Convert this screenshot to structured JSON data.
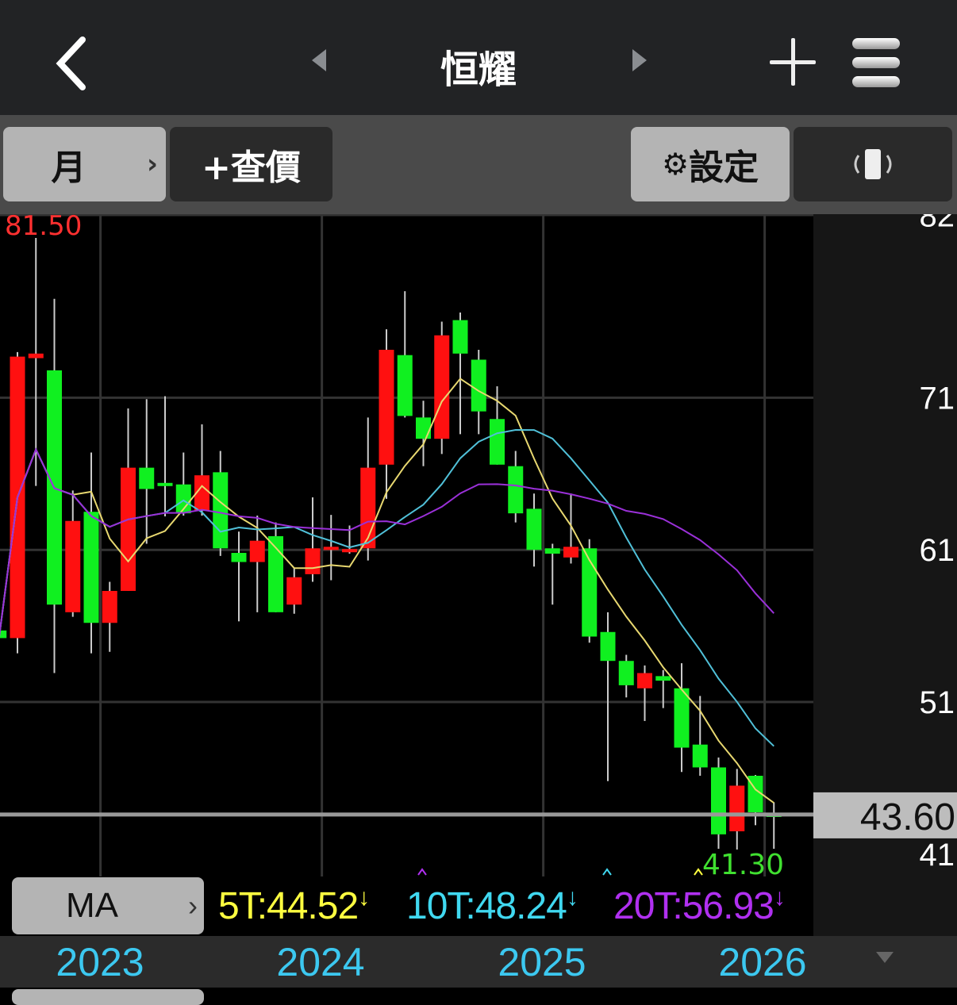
{
  "header": {
    "title": "恒耀",
    "back_icon": "chevron-left-icon",
    "prev_icon": "triangle-left-icon",
    "next_icon": "triangle-right-icon",
    "add_icon": "plus-icon",
    "menu_icon": "hamburger-icon"
  },
  "toolbar": {
    "period_label": "月",
    "query_label": "+查價",
    "settings_label": "設定",
    "settings_icon": "gear-icon",
    "rotate_icon": "rotate-screen-icon"
  },
  "ma": {
    "button_label": "MA",
    "items": [
      {
        "label": "5T:44.52",
        "color": "#ffff40",
        "arrow": "down"
      },
      {
        "label": "10T:48.24",
        "color": "#40d8f0",
        "arrow": "down"
      },
      {
        "label": "20T:56.93",
        "color": "#b030f0",
        "arrow": "down"
      }
    ]
  },
  "chart_data": {
    "type": "candlestick",
    "period": "月",
    "up_color": "#ff1010",
    "down_color": "#10f020",
    "ylim": [
      39.5,
      83
    ],
    "y_ticks": [
      82,
      71,
      61,
      51,
      41
    ],
    "x_ticks": [
      "2023",
      "2024",
      "2025",
      "2026"
    ],
    "grid": true,
    "max_label": "81.50",
    "min_label": "41.30",
    "last_price": "43.60",
    "ma_colors": {
      "5T": "#e8d870",
      "10T": "#50c0d8",
      "20T": "#9a30d8"
    },
    "ohlc": [
      [
        55.7,
        55.9,
        54.9,
        55.2
      ],
      [
        55.2,
        74.0,
        54.2,
        73.7
      ],
      [
        73.6,
        81.5,
        65.2,
        73.9
      ],
      [
        72.8,
        77.5,
        52.9,
        57.4
      ],
      [
        56.9,
        64.9,
        56.6,
        62.9
      ],
      [
        63.5,
        67.4,
        54.2,
        56.2
      ],
      [
        56.2,
        58.9,
        54.3,
        58.3
      ],
      [
        58.3,
        70.3,
        58.3,
        66.4
      ],
      [
        66.4,
        70.9,
        61.4,
        65.0
      ],
      [
        65.4,
        71.1,
        63.2,
        65.3
      ],
      [
        65.3,
        67.4,
        63.25,
        63.4
      ],
      [
        63.6,
        69.25,
        63.25,
        65.9
      ],
      [
        66.1,
        67.5,
        60.6,
        61.1
      ],
      [
        60.8,
        62.2,
        56.3,
        60.2
      ],
      [
        60.2,
        63.25,
        56.9,
        61.6
      ],
      [
        61.9,
        62.8,
        56.9,
        56.9
      ],
      [
        57.4,
        59.8,
        56.8,
        59.2
      ],
      [
        59.4,
        64.45,
        58.9,
        61.1
      ],
      [
        61.1,
        63.3,
        59.0,
        61.2
      ],
      [
        61.0,
        62.6,
        60.75,
        61.05
      ],
      [
        61.1,
        69.7,
        60.3,
        66.4
      ],
      [
        66.6,
        75.5,
        64.35,
        74.15
      ],
      [
        73.8,
        78.0,
        69.7,
        69.8
      ],
      [
        69.7,
        70.8,
        66.5,
        68.3
      ],
      [
        68.3,
        76.0,
        67.3,
        75.1
      ],
      [
        76.1,
        76.6,
        68.6,
        73.9
      ],
      [
        73.5,
        74.15,
        68.6,
        70.1
      ],
      [
        69.6,
        71.75,
        66.6,
        66.6
      ],
      [
        66.5,
        67.5,
        62.8,
        63.4
      ],
      [
        63.7,
        64.7,
        59.9,
        61.0
      ],
      [
        61.1,
        61.4,
        57.4,
        60.75
      ],
      [
        60.5,
        64.7,
        60.1,
        61.2
      ],
      [
        61.1,
        61.7,
        54.9,
        55.3
      ],
      [
        55.6,
        56.9,
        45.8,
        53.7
      ],
      [
        53.7,
        54.1,
        51.3,
        52.1
      ],
      [
        51.9,
        53.4,
        49.75,
        52.9
      ],
      [
        52.7,
        53.1,
        50.6,
        52.4
      ],
      [
        51.9,
        53.55,
        46.4,
        48.0
      ],
      [
        48.2,
        51.4,
        46.15,
        46.7
      ],
      [
        46.7,
        47.35,
        41.35,
        42.3
      ],
      [
        42.5,
        46.6,
        41.3,
        45.5
      ],
      [
        46.15,
        46.2,
        42.9,
        43.75
      ],
      [
        43.65,
        44.4,
        41.35,
        43.6
      ]
    ]
  }
}
